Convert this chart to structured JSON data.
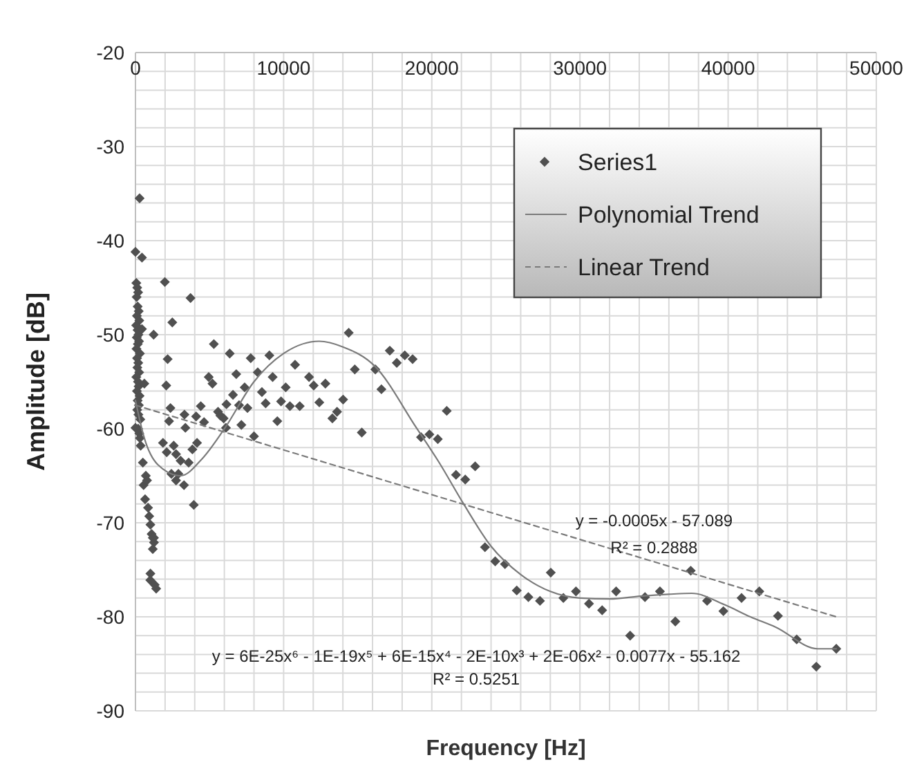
{
  "chart_data": {
    "type": "scatter",
    "xlabel": "Frequency [Hz]",
    "ylabel": "Amplitude [dB]",
    "xlim": [
      0,
      50000
    ],
    "ylim": [
      -90,
      -20
    ],
    "xticks": [
      0,
      {
        "value": 2000,
        "label": null
      },
      {
        "value": 4000,
        "label": null
      },
      {
        "value": 6000,
        "label": null
      },
      {
        "value": 8000,
        "label": null
      },
      10000,
      {
        "value": 12000,
        "label": null
      },
      {
        "value": 14000,
        "label": null
      },
      {
        "value": 16000,
        "label": null
      },
      {
        "value": 18000,
        "label": null
      },
      20000,
      {
        "value": 22000,
        "label": null
      },
      {
        "value": 24000,
        "label": null
      },
      {
        "value": 26000,
        "label": null
      },
      {
        "value": 28000,
        "label": null
      },
      30000,
      {
        "value": 32000,
        "label": null
      },
      {
        "value": 34000,
        "label": null
      },
      {
        "value": 36000,
        "label": null
      },
      {
        "value": 38000,
        "label": null
      },
      40000,
      {
        "value": 42000,
        "label": null
      },
      {
        "value": 44000,
        "label": null
      },
      {
        "value": 46000,
        "label": null
      },
      {
        "value": 48000,
        "label": null
      },
      50000
    ],
    "yticks": [
      -90,
      {
        "value": -88,
        "label": null
      },
      {
        "value": -86,
        "label": null
      },
      {
        "value": -84,
        "label": null
      },
      {
        "value": -82,
        "label": null
      },
      -80,
      {
        "value": -78,
        "label": null
      },
      {
        "value": -76,
        "label": null
      },
      {
        "value": -74,
        "label": null
      },
      {
        "value": -72,
        "label": null
      },
      -70,
      {
        "value": -68,
        "label": null
      },
      {
        "value": -66,
        "label": null
      },
      {
        "value": -64,
        "label": null
      },
      {
        "value": -62,
        "label": null
      },
      -60,
      {
        "value": -58,
        "label": null
      },
      {
        "value": -56,
        "label": null
      },
      {
        "value": -54,
        "label": null
      },
      {
        "value": -52,
        "label": null
      },
      -50,
      {
        "value": -48,
        "label": null
      },
      {
        "value": -46,
        "label": null
      },
      {
        "value": -44,
        "label": null
      },
      {
        "value": -42,
        "label": null
      },
      -40,
      {
        "value": -38,
        "label": null
      },
      {
        "value": -36,
        "label": null
      },
      {
        "value": -34,
        "label": null
      },
      {
        "value": -32,
        "label": null
      },
      -30,
      {
        "value": -28,
        "label": null
      },
      {
        "value": -26,
        "label": null
      },
      {
        "value": -24,
        "label": null
      },
      {
        "value": -22,
        "label": null
      },
      -20
    ],
    "grid": true,
    "legend": "top right",
    "series": [
      {
        "name": "Series1",
        "marker": "diamond",
        "color": "#505050",
        "x": [
          280,
          0,
          440,
          60,
          120,
          180,
          80,
          150,
          220,
          100,
          260,
          50,
          140,
          200,
          90,
          240,
          160,
          70,
          300,
          110,
          190,
          130,
          250,
          60,
          170,
          210,
          100,
          280,
          150,
          230,
          120,
          200,
          330,
          180,
          260,
          300,
          440,
          600,
          0,
          350,
          500,
          700,
          550,
          780,
          850,
          650,
          930,
          1010,
          1090,
          1170,
          1250,
          1170,
          1250,
          1010,
          1000,
          1300,
          1400,
          1984,
          2488,
          3717,
          1228,
          2173,
          2079,
          2362,
          2268,
          1858,
          2110,
          2583,
          2740,
          3047,
          2425,
          2898,
          2740,
          3276,
          3591,
          3370,
          3307,
          3843,
          4157,
          3937,
          4409,
          4094,
          4630,
          5291,
          4945,
          5197,
          5575,
          5732,
          5953,
          6110,
          6362,
          6583,
          6803,
          6142,
          6992,
          7149,
          7370,
          7559,
          7779,
          8000,
          8252,
          8535,
          8787,
          9039,
          9260,
          9575,
          9827,
          10142,
          10425,
          10772,
          11087,
          11717,
          12031,
          12409,
          12819,
          13291,
          13606,
          14016,
          14394,
          14804,
          15276,
          16190,
          16600,
          17165,
          17637,
          18177,
          18706,
          19272,
          19839,
          20406,
          21010,
          21634,
          22258,
          22927,
          23590,
          24280,
          24940,
          25734,
          26517,
          27302,
          28030,
          28880,
          29730,
          30610,
          31497,
          32441,
          33386,
          34388,
          35398,
          36437,
          37476,
          38580,
          39680,
          40906,
          42105,
          43363,
          44627,
          45950,
          47300
        ],
        "values": [
          -35.5,
          -41.2,
          -41.8,
          -44.5,
          -45,
          -45.5,
          -46,
          -47,
          -47.5,
          -48,
          -48.5,
          -49,
          -49.5,
          -50,
          -50.3,
          -50.7,
          -51,
          -51.5,
          -52,
          -52.5,
          -53,
          -53.5,
          -54,
          -54.5,
          -55,
          -55.5,
          -56,
          -56.5,
          -57,
          -57.5,
          -58,
          -58.5,
          -59,
          -60,
          -60.5,
          -61,
          -49.4,
          -55.2,
          -59.9,
          -61.8,
          -63.6,
          -65,
          -66,
          -65.5,
          -68.4,
          -67.5,
          -69.3,
          -70.2,
          -71.2,
          -71.6,
          -72.1,
          -72.8,
          -71.6,
          -75.4,
          -76.1,
          -76.6,
          -77,
          -44.4,
          -48.7,
          -46.1,
          -50,
          -52.6,
          -55.4,
          -57.8,
          -59.2,
          -61.5,
          -62.5,
          -61.8,
          -62.7,
          -63.4,
          -64.8,
          -64.8,
          -65.5,
          -66,
          -63.6,
          -59.9,
          -58.5,
          -62.2,
          -61.5,
          -68.1,
          -57.6,
          -58.7,
          -59.3,
          -51,
          -54.5,
          -55.2,
          -58.2,
          -58.6,
          -58.9,
          -59.9,
          -52,
          -56.4,
          -54.2,
          -57.4,
          -57.5,
          -59.6,
          -55.6,
          -57.8,
          -52.5,
          -60.8,
          -54,
          -56.1,
          -57.3,
          -52.2,
          -54.5,
          -59.2,
          -57.1,
          -55.6,
          -57.6,
          -53.2,
          -57.6,
          -54.5,
          -55.4,
          -57.2,
          -55.2,
          -58.9,
          -58.2,
          -56.9,
          -49.8,
          -53.7,
          -60.4,
          -53.7,
          -55.8,
          -51.7,
          -53,
          -52.2,
          -52.6,
          -60.9,
          -60.6,
          -61.1,
          -58.1,
          -64.9,
          -65.4,
          -64,
          -72.6,
          -74.1,
          -74.4,
          -77.2,
          -77.9,
          -78.3,
          -75.3,
          -78,
          -77.3,
          -78.6,
          -79.3,
          -77.3,
          -82,
          -77.9,
          -77.3,
          -80.5,
          -75.1,
          -78.3,
          -79.4,
          -78,
          -77.3,
          -79.9,
          -82.4,
          -85.3,
          -83.4
        ]
      },
      {
        "name": "Polynomial Trend",
        "type": "line",
        "line_style": "solid",
        "color": "#7a7a7a",
        "x": [
          0,
          600,
          1500,
          3055,
          4500,
          6047,
          8000,
          10000,
          12400,
          14000,
          16126,
          18960,
          20500,
          22110,
          24000,
          26000,
          28000,
          30000,
          32000,
          34075,
          36000,
          37540,
          39740,
          41500,
          43210,
          46044,
          47300
        ],
        "values": [
          -57,
          -61,
          -63.8,
          -65,
          -63.2,
          -59.9,
          -55,
          -52,
          -50.7,
          -51.3,
          -53.3,
          -59.9,
          -63.6,
          -67.9,
          -72.5,
          -75.5,
          -77.3,
          -78,
          -78.1,
          -77.8,
          -77.6,
          -77.5,
          -78.7,
          -80,
          -81.1,
          -83.4,
          -83.4
        ]
      },
      {
        "name": "Linear Trend",
        "type": "line",
        "line_style": "dashed",
        "color": "#7a7a7a",
        "x": [
          0,
          47300
        ],
        "values": [
          -57.5,
          -80
        ]
      }
    ],
    "annotations": [
      "y = -0.0005x - 57.089",
      "R² = 0.2888",
      "y = 6E-25x⁶ - 1E-19x⁵ + 6E-15x⁴ - 2E-10x³ + 2E-06x² - 0.0077x - 55.162",
      "R² = 0.5251"
    ]
  }
}
